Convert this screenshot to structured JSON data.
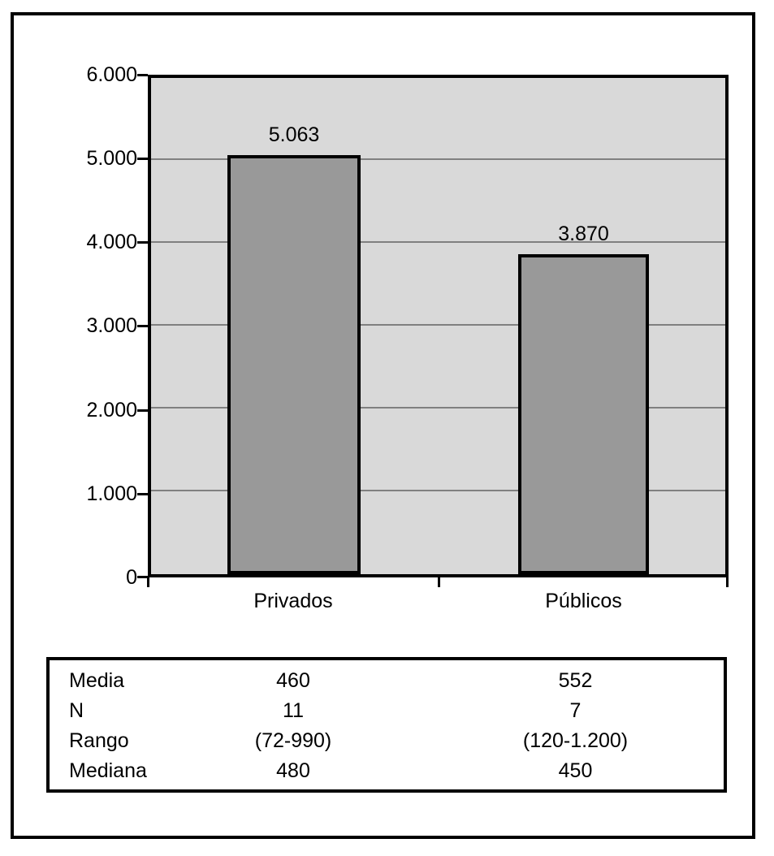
{
  "chart_data": {
    "type": "bar",
    "title": "",
    "xlabel": "",
    "ylabel": "",
    "categories": [
      "Privados",
      "Públicos"
    ],
    "values": [
      5063,
      3870
    ],
    "value_labels": [
      "5.063",
      "3.870"
    ],
    "ylim": [
      0,
      6000
    ],
    "ytick_values": [
      6000,
      5000,
      4000,
      3000,
      2000,
      1000,
      0
    ],
    "ytick_labels": [
      "6.000",
      "5.000",
      "4.000",
      "3.000",
      "2.000",
      "1.000",
      "0"
    ],
    "grid": true,
    "legend": false,
    "colors": {
      "bar_fill": "#999999",
      "bar_border": "#000000",
      "plot_background": "#d9d9d9",
      "gridline": "#808080",
      "axis": "#000000",
      "frame_border": "#000000",
      "page_background": "#ffffff"
    }
  },
  "stats_table": {
    "rows": [
      {
        "label": "Media",
        "values": [
          "460",
          "552"
        ]
      },
      {
        "label": "N",
        "values": [
          "11",
          "7"
        ]
      },
      {
        "label": "Rango",
        "values": [
          "(72-990)",
          "(120-1.200)"
        ]
      },
      {
        "label": "Mediana",
        "values": [
          "480",
          "450"
        ]
      }
    ]
  }
}
